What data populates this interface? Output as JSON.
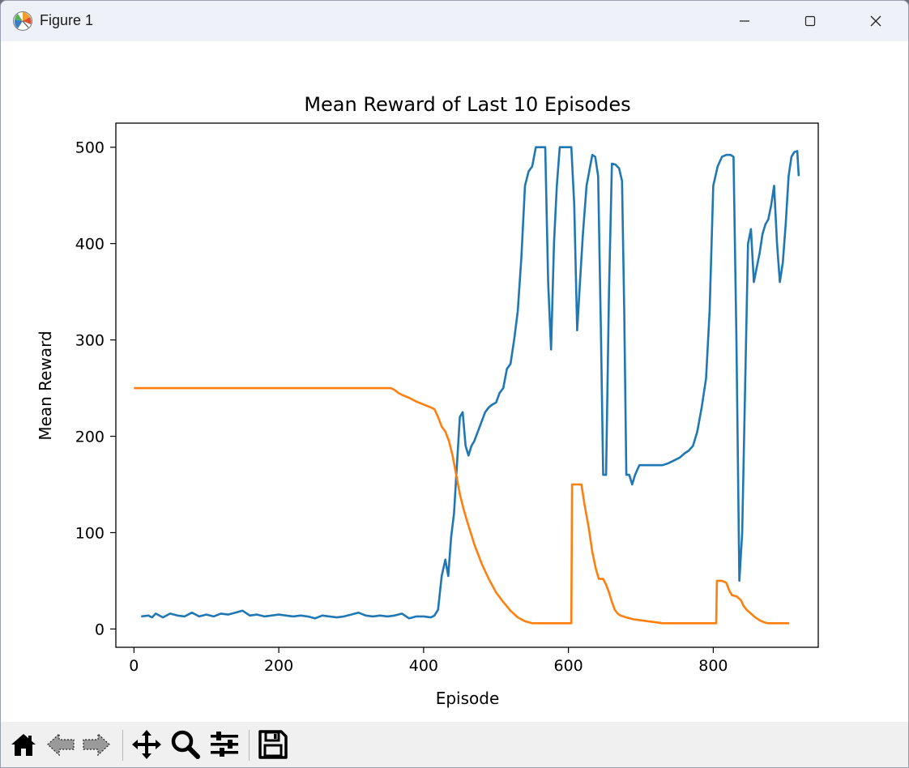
{
  "window": {
    "title": "Figure 1"
  },
  "toolbar": {
    "items": [
      {
        "name": "home",
        "icon": "home-icon"
      },
      {
        "name": "back",
        "icon": "arrow-left-icon"
      },
      {
        "name": "forward",
        "icon": "arrow-right-icon"
      },
      {
        "name": "pan",
        "icon": "move-icon"
      },
      {
        "name": "zoom",
        "icon": "magnifier-icon"
      },
      {
        "name": "configure-subplots",
        "icon": "sliders-icon"
      },
      {
        "name": "save",
        "icon": "floppy-disk-icon"
      }
    ]
  },
  "chart_data": {
    "type": "line",
    "title": "Mean Reward of Last 10 Episodes",
    "xlabel": "Episode",
    "ylabel": "Mean Reward",
    "xlim": [
      -25,
      945
    ],
    "ylim": [
      -19,
      525
    ],
    "xticks": [
      0,
      200,
      400,
      600,
      800
    ],
    "yticks": [
      0,
      100,
      200,
      300,
      400,
      500
    ],
    "grid": false,
    "colors": {
      "series_0": "#1f77b4",
      "series_1": "#ff7f0e"
    },
    "series": [
      {
        "points": [
          [
            10,
            13
          ],
          [
            20,
            14
          ],
          [
            25,
            12
          ],
          [
            30,
            16
          ],
          [
            40,
            12
          ],
          [
            50,
            16
          ],
          [
            60,
            14
          ],
          [
            70,
            13
          ],
          [
            80,
            17
          ],
          [
            90,
            13
          ],
          [
            100,
            15
          ],
          [
            110,
            13
          ],
          [
            120,
            16
          ],
          [
            130,
            15
          ],
          [
            140,
            17
          ],
          [
            150,
            19
          ],
          [
            160,
            14
          ],
          [
            170,
            15
          ],
          [
            180,
            13
          ],
          [
            190,
            14
          ],
          [
            200,
            15
          ],
          [
            210,
            14
          ],
          [
            220,
            13
          ],
          [
            230,
            14
          ],
          [
            240,
            13
          ],
          [
            250,
            11
          ],
          [
            260,
            14
          ],
          [
            270,
            13
          ],
          [
            280,
            12
          ],
          [
            290,
            13
          ],
          [
            300,
            15
          ],
          [
            310,
            17
          ],
          [
            320,
            14
          ],
          [
            330,
            13
          ],
          [
            340,
            14
          ],
          [
            350,
            13
          ],
          [
            360,
            14
          ],
          [
            370,
            16
          ],
          [
            380,
            11
          ],
          [
            390,
            13
          ],
          [
            400,
            13
          ],
          [
            410,
            12
          ],
          [
            415,
            14
          ],
          [
            420,
            20
          ],
          [
            425,
            55
          ],
          [
            430,
            72
          ],
          [
            434,
            55
          ],
          [
            438,
            95
          ],
          [
            442,
            120
          ],
          [
            446,
            170
          ],
          [
            450,
            220
          ],
          [
            454,
            225
          ],
          [
            458,
            190
          ],
          [
            462,
            180
          ],
          [
            466,
            190
          ],
          [
            470,
            195
          ],
          [
            475,
            205
          ],
          [
            480,
            215
          ],
          [
            485,
            225
          ],
          [
            490,
            230
          ],
          [
            495,
            233
          ],
          [
            500,
            235
          ],
          [
            505,
            245
          ],
          [
            510,
            250
          ],
          [
            515,
            270
          ],
          [
            520,
            275
          ],
          [
            525,
            300
          ],
          [
            530,
            330
          ],
          [
            535,
            385
          ],
          [
            540,
            460
          ],
          [
            545,
            475
          ],
          [
            550,
            480
          ],
          [
            555,
            500
          ],
          [
            565,
            500
          ],
          [
            568,
            500
          ],
          [
            572,
            360
          ],
          [
            576,
            290
          ],
          [
            580,
            400
          ],
          [
            584,
            460
          ],
          [
            588,
            500
          ],
          [
            600,
            500
          ],
          [
            604,
            500
          ],
          [
            608,
            440
          ],
          [
            612,
            310
          ],
          [
            616,
            360
          ],
          [
            620,
            410
          ],
          [
            625,
            460
          ],
          [
            630,
            480
          ],
          [
            633,
            492
          ],
          [
            637,
            490
          ],
          [
            641,
            470
          ],
          [
            645,
            300
          ],
          [
            648,
            160
          ],
          [
            652,
            160
          ],
          [
            656,
            350
          ],
          [
            660,
            483
          ],
          [
            665,
            482
          ],
          [
            670,
            478
          ],
          [
            674,
            465
          ],
          [
            677,
            330
          ],
          [
            680,
            160
          ],
          [
            684,
            160
          ],
          [
            688,
            150
          ],
          [
            692,
            160
          ],
          [
            698,
            170
          ],
          [
            704,
            170
          ],
          [
            710,
            170
          ],
          [
            716,
            170
          ],
          [
            722,
            170
          ],
          [
            730,
            170
          ],
          [
            738,
            172
          ],
          [
            746,
            175
          ],
          [
            754,
            178
          ],
          [
            760,
            182
          ],
          [
            766,
            185
          ],
          [
            772,
            190
          ],
          [
            778,
            205
          ],
          [
            784,
            230
          ],
          [
            790,
            260
          ],
          [
            795,
            330
          ],
          [
            800,
            460
          ],
          [
            806,
            480
          ],
          [
            812,
            490
          ],
          [
            818,
            492
          ],
          [
            824,
            492
          ],
          [
            828,
            490
          ],
          [
            832,
            300
          ],
          [
            836,
            50
          ],
          [
            840,
            100
          ],
          [
            844,
            250
          ],
          [
            848,
            400
          ],
          [
            852,
            415
          ],
          [
            856,
            360
          ],
          [
            860,
            375
          ],
          [
            864,
            390
          ],
          [
            868,
            410
          ],
          [
            872,
            420
          ],
          [
            876,
            425
          ],
          [
            880,
            440
          ],
          [
            884,
            460
          ],
          [
            888,
            400
          ],
          [
            892,
            360
          ],
          [
            896,
            380
          ],
          [
            900,
            420
          ],
          [
            904,
            470
          ],
          [
            908,
            490
          ],
          [
            912,
            495
          ],
          [
            916,
            496
          ],
          [
            918,
            470
          ]
        ]
      },
      {
        "points": [
          [
            0,
            250
          ],
          [
            355,
            250
          ],
          [
            360,
            248
          ],
          [
            365,
            245
          ],
          [
            370,
            243
          ],
          [
            380,
            240
          ],
          [
            390,
            236
          ],
          [
            400,
            233
          ],
          [
            410,
            230
          ],
          [
            415,
            228
          ],
          [
            420,
            220
          ],
          [
            425,
            210
          ],
          [
            430,
            205
          ],
          [
            435,
            195
          ],
          [
            440,
            180
          ],
          [
            445,
            160
          ],
          [
            450,
            140
          ],
          [
            455,
            125
          ],
          [
            460,
            112
          ],
          [
            465,
            100
          ],
          [
            470,
            88
          ],
          [
            475,
            78
          ],
          [
            480,
            68
          ],
          [
            485,
            60
          ],
          [
            490,
            52
          ],
          [
            495,
            45
          ],
          [
            500,
            38
          ],
          [
            510,
            28
          ],
          [
            520,
            19
          ],
          [
            530,
            12
          ],
          [
            540,
            8
          ],
          [
            550,
            6
          ],
          [
            560,
            6
          ],
          [
            570,
            6
          ],
          [
            580,
            6
          ],
          [
            590,
            6
          ],
          [
            600,
            6
          ],
          [
            604,
            6
          ],
          [
            605,
            150
          ],
          [
            612,
            150
          ],
          [
            618,
            150
          ],
          [
            622,
            130
          ],
          [
            628,
            105
          ],
          [
            633,
            80
          ],
          [
            638,
            62
          ],
          [
            642,
            52
          ],
          [
            648,
            52
          ],
          [
            652,
            46
          ],
          [
            656,
            38
          ],
          [
            660,
            28
          ],
          [
            664,
            20
          ],
          [
            668,
            16
          ],
          [
            672,
            14
          ],
          [
            680,
            12
          ],
          [
            690,
            10
          ],
          [
            700,
            9
          ],
          [
            710,
            8
          ],
          [
            720,
            7
          ],
          [
            730,
            6
          ],
          [
            750,
            6
          ],
          [
            770,
            6
          ],
          [
            790,
            6
          ],
          [
            804,
            6
          ],
          [
            805,
            50
          ],
          [
            812,
            50
          ],
          [
            818,
            48
          ],
          [
            822,
            40
          ],
          [
            826,
            35
          ],
          [
            832,
            34
          ],
          [
            838,
            30
          ],
          [
            842,
            24
          ],
          [
            846,
            20
          ],
          [
            852,
            16
          ],
          [
            858,
            12
          ],
          [
            864,
            9
          ],
          [
            870,
            7
          ],
          [
            875,
            6
          ],
          [
            890,
            6
          ],
          [
            900,
            6
          ],
          [
            905,
            6
          ]
        ]
      }
    ]
  }
}
